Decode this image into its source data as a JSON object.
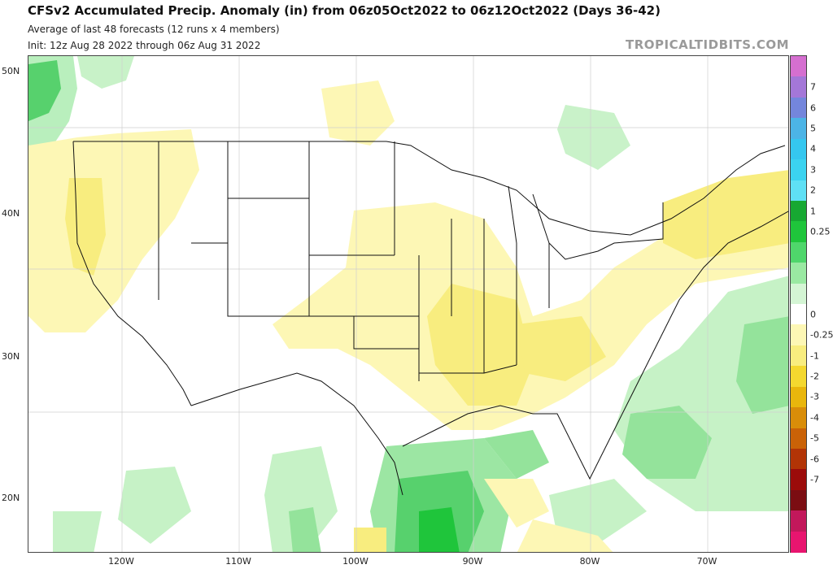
{
  "header": {
    "title": "CFSv2 Accumulated Precip. Anomaly (in) from 06z05Oct2022 to 06z12Oct2022 (Days 36-42)",
    "line2": "Average of last 48 forecasts (12 runs x 4 members)",
    "line3": "Init: 12z Aug 28 2022 through 06z Aug 31 2022",
    "watermark": "TROPICALTIDBITS.COM"
  },
  "map": {
    "lat_labels": [
      "50N",
      "40N",
      "30N",
      "20N"
    ],
    "lon_labels": [
      "120W",
      "110W",
      "100W",
      "90W",
      "80W",
      "70W"
    ]
  },
  "colorbar": {
    "labels": [
      "7",
      "6",
      "5",
      "4",
      "3",
      "2",
      "1",
      "0.25",
      "0",
      "-0.25",
      "-1",
      "-2",
      "-3",
      "-4",
      "-5",
      "-6",
      "-7"
    ],
    "colors": [
      "#d56fd0",
      "#a477d8",
      "#7486dc",
      "#4cb4e6",
      "#35c7ef",
      "#3bd3f0",
      "#5fe0f5",
      "#17a832",
      "#1fc53b",
      "#4fd66b",
      "#9ae9a2",
      "#d4f5d4",
      "#ffffff",
      "#fdf7b5",
      "#f8ed7f",
      "#f4d82f",
      "#e9b60c",
      "#d98d09",
      "#ca6207",
      "#b23406",
      "#9b0b0a",
      "#7b0d12",
      "#c2185b",
      "#e8156f"
    ]
  }
}
